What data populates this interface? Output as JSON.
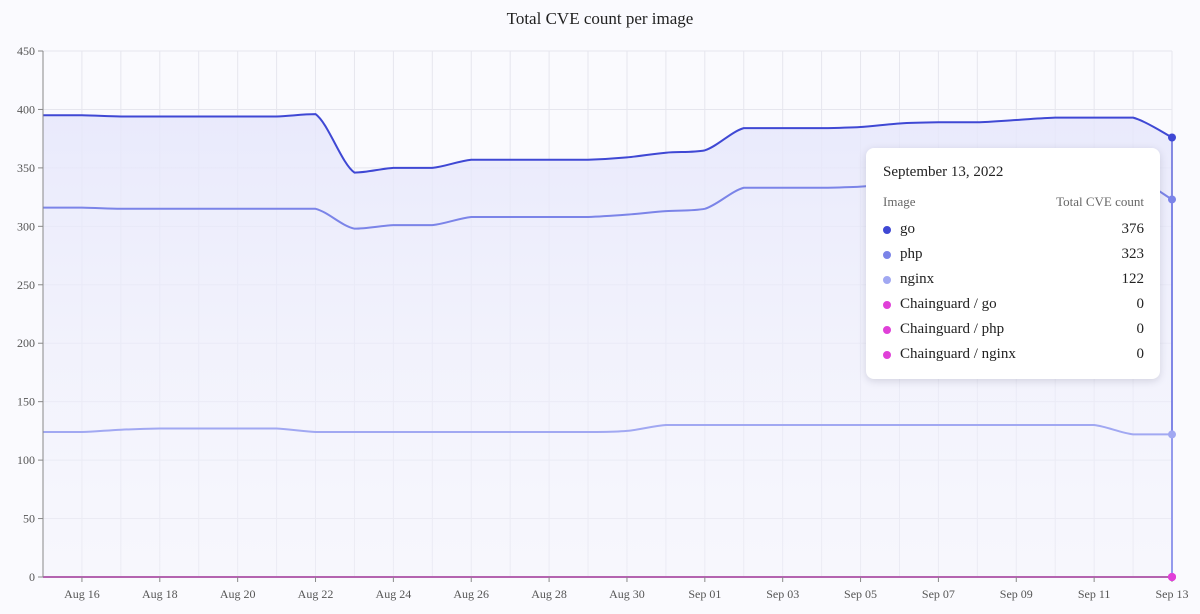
{
  "chart_data": {
    "type": "line",
    "title": "Total CVE count per image",
    "x": [
      "Aug 15",
      "Aug 16",
      "Aug 17",
      "Aug 18",
      "Aug 19",
      "Aug 20",
      "Aug 21",
      "Aug 22",
      "Aug 23",
      "Aug 24",
      "Aug 25",
      "Aug 26",
      "Aug 27",
      "Aug 28",
      "Aug 29",
      "Aug 30",
      "Aug 31",
      "Sep 01",
      "Sep 02",
      "Sep 03",
      "Sep 04",
      "Sep 05",
      "Sep 06",
      "Sep 07",
      "Sep 08",
      "Sep 09",
      "Sep 10",
      "Sep 11",
      "Sep 12",
      "Sep 13"
    ],
    "x_tick_labels": [
      "Aug 16",
      "Aug 18",
      "Aug 20",
      "Aug 22",
      "Aug 24",
      "Aug 26",
      "Aug 28",
      "Aug 30",
      "Sep 01",
      "Sep 03",
      "Sep 05",
      "Sep 07",
      "Sep 09",
      "Sep 11",
      "Sep 13"
    ],
    "ylim": [
      0,
      450
    ],
    "y_ticks": [
      0,
      50,
      100,
      150,
      200,
      250,
      300,
      350,
      400,
      450
    ],
    "grid": true,
    "series": [
      {
        "name": "go",
        "color": "#3f48d4",
        "values": [
          395,
          395,
          394,
          394,
          394,
          394,
          394,
          396,
          346,
          350,
          350,
          357,
          357,
          357,
          357,
          359,
          363,
          365,
          384,
          384,
          384,
          385,
          388,
          389,
          389,
          391,
          393,
          393,
          393,
          376
        ]
      },
      {
        "name": "php",
        "color": "#7b84e8",
        "values": [
          316,
          316,
          315,
          315,
          315,
          315,
          315,
          315,
          298,
          301,
          301,
          308,
          308,
          308,
          308,
          310,
          313,
          315,
          333,
          333,
          333,
          334,
          337,
          338,
          338,
          340,
          342,
          342,
          342,
          323
        ]
      },
      {
        "name": "nginx",
        "color": "#a1a8f2",
        "values": [
          124,
          124,
          126,
          127,
          127,
          127,
          127,
          124,
          124,
          124,
          124,
          124,
          124,
          124,
          124,
          125,
          130,
          130,
          130,
          130,
          130,
          130,
          130,
          130,
          130,
          130,
          130,
          130,
          122,
          122
        ]
      },
      {
        "name": "Chainguard / go",
        "color": "#e040d8",
        "values": [
          0,
          0,
          0,
          0,
          0,
          0,
          0,
          0,
          0,
          0,
          0,
          0,
          0,
          0,
          0,
          0,
          0,
          0,
          0,
          0,
          0,
          0,
          0,
          0,
          0,
          0,
          0,
          0,
          0,
          0
        ]
      },
      {
        "name": "Chainguard / php",
        "color": "#e040d8",
        "values": [
          0,
          0,
          0,
          0,
          0,
          0,
          0,
          0,
          0,
          0,
          0,
          0,
          0,
          0,
          0,
          0,
          0,
          0,
          0,
          0,
          0,
          0,
          0,
          0,
          0,
          0,
          0,
          0,
          0,
          0
        ]
      },
      {
        "name": "Chainguard / nginx",
        "color": "#e040d8",
        "values": [
          0,
          0,
          0,
          0,
          0,
          0,
          0,
          0,
          0,
          0,
          0,
          0,
          0,
          0,
          0,
          0,
          0,
          0,
          0,
          0,
          0,
          0,
          0,
          0,
          0,
          0,
          0,
          0,
          0,
          0
        ]
      }
    ]
  },
  "tooltip": {
    "date": "September 13, 2022",
    "col_image": "Image",
    "col_value": "Total CVE count",
    "rows": [
      {
        "name": "go",
        "value": "376",
        "color": "#3f48d4"
      },
      {
        "name": "php",
        "value": "323",
        "color": "#7b84e8"
      },
      {
        "name": "nginx",
        "value": "122",
        "color": "#a1a8f2"
      },
      {
        "name": "Chainguard / go",
        "value": "0",
        "color": "#e040d8"
      },
      {
        "name": "Chainguard / php",
        "value": "0",
        "color": "#e040d8"
      },
      {
        "name": "Chainguard / nginx",
        "value": "0",
        "color": "#e040d8"
      }
    ]
  }
}
